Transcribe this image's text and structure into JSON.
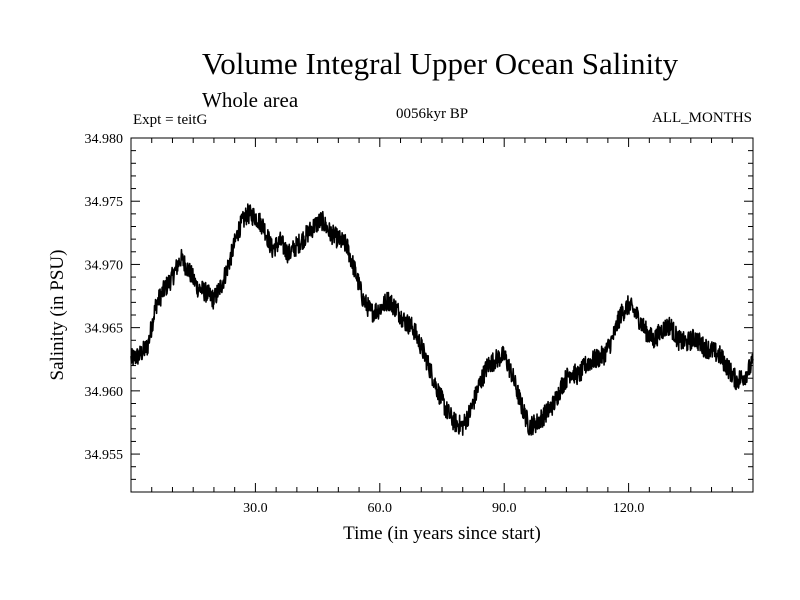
{
  "chart_data": {
    "type": "line",
    "title": "Volume Integral Upper Ocean Salinity",
    "subtitle": "Whole area",
    "experiment_label": "Expt = teitG",
    "period_label": "0056kyr BP",
    "months_label": "ALL_MONTHS",
    "xlabel": "Time (in years since start)",
    "ylabel": "Salinity (in PSU)",
    "xlim": [
      0,
      150
    ],
    "ylim": [
      34.952,
      34.98
    ],
    "x_ticks": [
      30,
      60,
      90,
      120
    ],
    "x_tick_labels": [
      "30.0",
      "60.0",
      "90.0",
      "120.0"
    ],
    "y_ticks": [
      34.955,
      34.96,
      34.965,
      34.97,
      34.975,
      34.98
    ],
    "y_tick_labels": [
      "34.955",
      "34.960",
      "34.965",
      "34.970",
      "34.975",
      "34.980"
    ],
    "grid": false,
    "series": [
      {
        "name": "salinity",
        "color": "#000000",
        "x": [
          0,
          2,
          4,
          6,
          8,
          10,
          12,
          14,
          16,
          18,
          20,
          22,
          24,
          26,
          28,
          30,
          32,
          34,
          36,
          38,
          40,
          42,
          44,
          46,
          48,
          50,
          52,
          54,
          56,
          58,
          60,
          62,
          64,
          66,
          68,
          70,
          72,
          74,
          76,
          78,
          80,
          82,
          84,
          86,
          88,
          90,
          92,
          94,
          96,
          98,
          100,
          102,
          104,
          106,
          108,
          110,
          112,
          114,
          116,
          118,
          120,
          122,
          124,
          126,
          128,
          130,
          132,
          134,
          136,
          138,
          140,
          142,
          144,
          146,
          148,
          150
        ],
        "y": [
          34.9625,
          34.9628,
          34.9635,
          34.9668,
          34.968,
          34.969,
          34.9705,
          34.9695,
          34.9682,
          34.9678,
          34.9672,
          34.9685,
          34.9705,
          34.9728,
          34.974,
          34.9738,
          34.973,
          34.9712,
          34.9718,
          34.9708,
          34.9715,
          34.9722,
          34.973,
          34.9735,
          34.9725,
          34.972,
          34.9715,
          34.9695,
          34.9672,
          34.9662,
          34.9665,
          34.9672,
          34.9665,
          34.9655,
          34.965,
          34.9635,
          34.9618,
          34.96,
          34.9585,
          34.9575,
          34.9572,
          34.9585,
          34.9605,
          34.962,
          34.9625,
          34.9628,
          34.9612,
          34.959,
          34.9572,
          34.9575,
          34.9582,
          34.959,
          34.9605,
          34.9615,
          34.9612,
          34.9622,
          34.9625,
          34.9628,
          34.964,
          34.966,
          34.9668,
          34.966,
          34.9648,
          34.964,
          34.9648,
          34.9652,
          34.964,
          34.9638,
          34.9642,
          34.9635,
          34.9632,
          34.9628,
          34.9618,
          34.9608,
          34.9612,
          34.9622
        ]
      }
    ]
  }
}
